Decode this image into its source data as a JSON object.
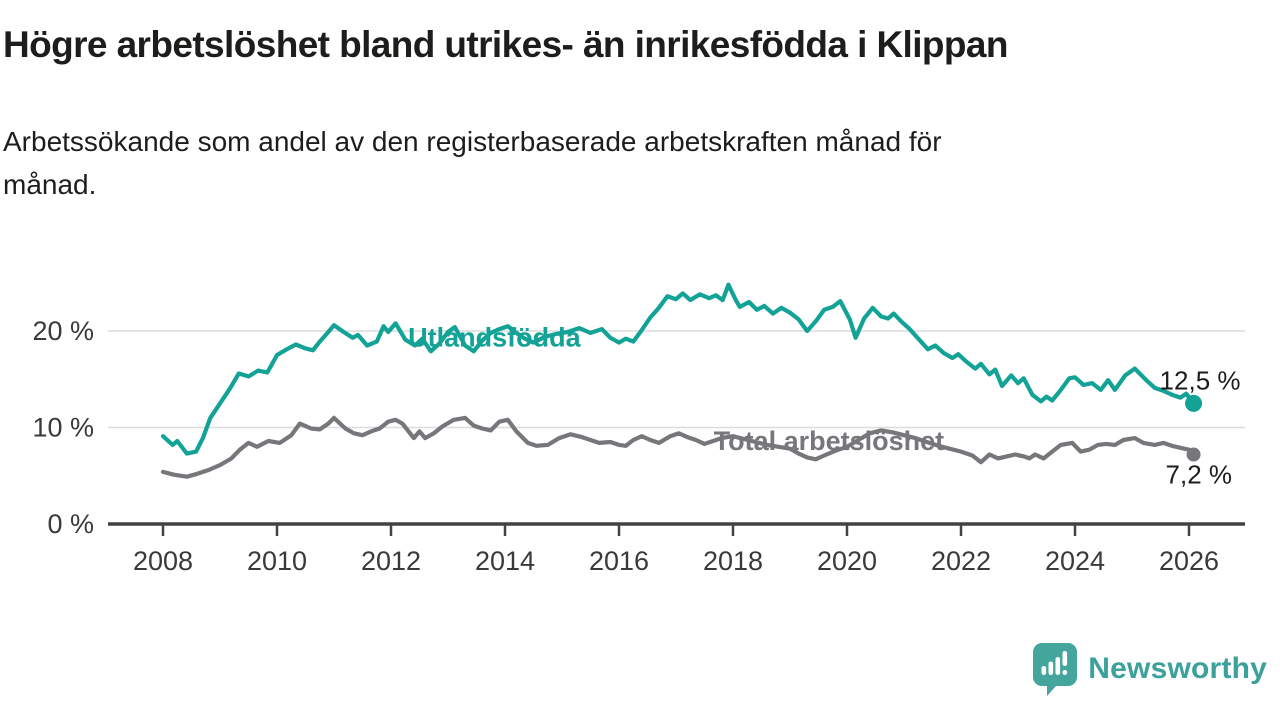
{
  "header": {
    "title": "Högre arbetslöshet bland utrikes- än inrikesfödda i Klippan",
    "subtitle_line1": "Arbetssökande som andel av den registerbaserade arbetskraften månad för",
    "subtitle_line2": "månad."
  },
  "colors": {
    "line_teal": "#13a296",
    "line_gray": "#77777b",
    "brand_teal": "#44a59d",
    "brand_text_teal": "#3ba19a",
    "axis": "#424242",
    "tick_text": "#3a3a3a",
    "grid": "#dcdcdc",
    "text_dark": "#1d1d1b"
  },
  "chart_data": {
    "type": "line",
    "x_unit": "decimal_year",
    "xlim": [
      2007.0,
      2027.0
    ],
    "ylim": [
      0,
      27
    ],
    "grid": "horizontal",
    "x_ticks": [
      {
        "v": 2008,
        "label": "2008"
      },
      {
        "v": 2010,
        "label": "2010"
      },
      {
        "v": 2012,
        "label": "2012"
      },
      {
        "v": 2014,
        "label": "2014"
      },
      {
        "v": 2016,
        "label": "2016"
      },
      {
        "v": 2018,
        "label": "2018"
      },
      {
        "v": 2020,
        "label": "2020"
      },
      {
        "v": 2022,
        "label": "2022"
      },
      {
        "v": 2024,
        "label": "2024"
      },
      {
        "v": 2026,
        "label": "2026"
      }
    ],
    "y_ticks": [
      {
        "v": 0,
        "label": "0 %"
      },
      {
        "v": 10,
        "label": "10 %"
      },
      {
        "v": 20,
        "label": "20 %"
      }
    ],
    "series": [
      {
        "name": "Utlandsfödda",
        "color": "#13a296",
        "line_width": 4.2,
        "end_dot_radius": 8.5,
        "end_label": "12,5 %",
        "end_value": 12.5,
        "label_pos": {
          "x": 2012.3,
          "y": 18.4
        },
        "points": [
          [
            2008.0,
            9.1
          ],
          [
            2008.17,
            8.2
          ],
          [
            2008.25,
            8.6
          ],
          [
            2008.42,
            7.3
          ],
          [
            2008.58,
            7.5
          ],
          [
            2008.7,
            8.9
          ],
          [
            2008.83,
            11.0
          ],
          [
            2009.0,
            12.5
          ],
          [
            2009.17,
            14.0
          ],
          [
            2009.33,
            15.6
          ],
          [
            2009.5,
            15.3
          ],
          [
            2009.67,
            15.9
          ],
          [
            2009.83,
            15.7
          ],
          [
            2010.0,
            17.5
          ],
          [
            2010.17,
            18.1
          ],
          [
            2010.33,
            18.6
          ],
          [
            2010.5,
            18.2
          ],
          [
            2010.63,
            18.0
          ],
          [
            2010.75,
            18.9
          ],
          [
            2010.9,
            19.9
          ],
          [
            2011.0,
            20.6
          ],
          [
            2011.17,
            19.9
          ],
          [
            2011.33,
            19.3
          ],
          [
            2011.42,
            19.6
          ],
          [
            2011.58,
            18.5
          ],
          [
            2011.75,
            18.9
          ],
          [
            2011.87,
            20.5
          ],
          [
            2011.95,
            19.9
          ],
          [
            2012.08,
            20.8
          ],
          [
            2012.25,
            19.1
          ],
          [
            2012.42,
            18.5
          ],
          [
            2012.55,
            19.2
          ],
          [
            2012.7,
            17.9
          ],
          [
            2012.85,
            18.7
          ],
          [
            2013.0,
            19.9
          ],
          [
            2013.12,
            20.4
          ],
          [
            2013.3,
            18.5
          ],
          [
            2013.45,
            17.9
          ],
          [
            2013.6,
            19.0
          ],
          [
            2013.75,
            19.8
          ],
          [
            2013.9,
            20.2
          ],
          [
            2014.05,
            20.5
          ],
          [
            2014.2,
            19.8
          ],
          [
            2014.35,
            19.2
          ],
          [
            2014.5,
            18.8
          ],
          [
            2014.7,
            19.4
          ],
          [
            2014.9,
            19.7
          ],
          [
            2015.1,
            19.9
          ],
          [
            2015.3,
            20.3
          ],
          [
            2015.5,
            19.8
          ],
          [
            2015.7,
            20.2
          ],
          [
            2015.85,
            19.3
          ],
          [
            2016.0,
            18.8
          ],
          [
            2016.12,
            19.2
          ],
          [
            2016.25,
            18.9
          ],
          [
            2016.4,
            20.1
          ],
          [
            2016.55,
            21.4
          ],
          [
            2016.7,
            22.4
          ],
          [
            2016.85,
            23.6
          ],
          [
            2017.0,
            23.3
          ],
          [
            2017.12,
            23.9
          ],
          [
            2017.25,
            23.2
          ],
          [
            2017.42,
            23.8
          ],
          [
            2017.58,
            23.4
          ],
          [
            2017.7,
            23.7
          ],
          [
            2017.82,
            23.2
          ],
          [
            2017.92,
            24.8
          ],
          [
            2018.05,
            23.2
          ],
          [
            2018.12,
            22.5
          ],
          [
            2018.28,
            23.0
          ],
          [
            2018.42,
            22.2
          ],
          [
            2018.55,
            22.6
          ],
          [
            2018.7,
            21.8
          ],
          [
            2018.85,
            22.4
          ],
          [
            2019.0,
            21.9
          ],
          [
            2019.15,
            21.2
          ],
          [
            2019.3,
            20.0
          ],
          [
            2019.45,
            21.0
          ],
          [
            2019.6,
            22.2
          ],
          [
            2019.75,
            22.5
          ],
          [
            2019.88,
            23.1
          ],
          [
            2020.05,
            21.2
          ],
          [
            2020.15,
            19.3
          ],
          [
            2020.3,
            21.3
          ],
          [
            2020.45,
            22.4
          ],
          [
            2020.6,
            21.5
          ],
          [
            2020.72,
            21.3
          ],
          [
            2020.82,
            21.8
          ],
          [
            2020.95,
            21.0
          ],
          [
            2021.1,
            20.2
          ],
          [
            2021.25,
            19.2
          ],
          [
            2021.42,
            18.1
          ],
          [
            2021.55,
            18.5
          ],
          [
            2021.7,
            17.7
          ],
          [
            2021.85,
            17.2
          ],
          [
            2021.95,
            17.6
          ],
          [
            2022.1,
            16.8
          ],
          [
            2022.25,
            16.1
          ],
          [
            2022.35,
            16.6
          ],
          [
            2022.5,
            15.5
          ],
          [
            2022.6,
            16.0
          ],
          [
            2022.72,
            14.3
          ],
          [
            2022.88,
            15.4
          ],
          [
            2023.0,
            14.6
          ],
          [
            2023.1,
            15.1
          ],
          [
            2023.25,
            13.4
          ],
          [
            2023.4,
            12.7
          ],
          [
            2023.5,
            13.2
          ],
          [
            2023.6,
            12.8
          ],
          [
            2023.75,
            13.9
          ],
          [
            2023.9,
            15.1
          ],
          [
            2024.0,
            15.2
          ],
          [
            2024.15,
            14.4
          ],
          [
            2024.3,
            14.6
          ],
          [
            2024.45,
            13.9
          ],
          [
            2024.58,
            14.9
          ],
          [
            2024.7,
            13.9
          ],
          [
            2024.88,
            15.4
          ],
          [
            2025.05,
            16.1
          ],
          [
            2025.25,
            14.9
          ],
          [
            2025.4,
            14.1
          ],
          [
            2025.55,
            13.8
          ],
          [
            2025.7,
            13.4
          ],
          [
            2025.85,
            13.1
          ],
          [
            2025.95,
            13.5
          ],
          [
            2026.08,
            12.5
          ]
        ]
      },
      {
        "name": "Total arbetslöshet",
        "color": "#77777b",
        "line_width": 4.2,
        "end_dot_radius": 7,
        "end_label": "7,2 %",
        "end_value": 7.2,
        "label_pos": {
          "x": 2017.66,
          "y": 7.67
        },
        "points": [
          [
            2008.0,
            5.4
          ],
          [
            2008.2,
            5.1
          ],
          [
            2008.42,
            4.9
          ],
          [
            2008.6,
            5.2
          ],
          [
            2008.8,
            5.6
          ],
          [
            2009.0,
            6.1
          ],
          [
            2009.2,
            6.8
          ],
          [
            2009.35,
            7.7
          ],
          [
            2009.5,
            8.4
          ],
          [
            2009.65,
            8.0
          ],
          [
            2009.85,
            8.6
          ],
          [
            2010.05,
            8.4
          ],
          [
            2010.25,
            9.2
          ],
          [
            2010.4,
            10.4
          ],
          [
            2010.6,
            9.9
          ],
          [
            2010.75,
            9.8
          ],
          [
            2010.9,
            10.4
          ],
          [
            2011.0,
            11.0
          ],
          [
            2011.2,
            9.9
          ],
          [
            2011.35,
            9.4
          ],
          [
            2011.5,
            9.2
          ],
          [
            2011.65,
            9.6
          ],
          [
            2011.8,
            9.9
          ],
          [
            2011.95,
            10.6
          ],
          [
            2012.08,
            10.8
          ],
          [
            2012.2,
            10.4
          ],
          [
            2012.4,
            8.9
          ],
          [
            2012.5,
            9.6
          ],
          [
            2012.6,
            8.9
          ],
          [
            2012.75,
            9.4
          ],
          [
            2012.9,
            10.1
          ],
          [
            2013.1,
            10.8
          ],
          [
            2013.3,
            11.0
          ],
          [
            2013.45,
            10.2
          ],
          [
            2013.6,
            9.9
          ],
          [
            2013.75,
            9.7
          ],
          [
            2013.9,
            10.6
          ],
          [
            2014.05,
            10.8
          ],
          [
            2014.2,
            9.6
          ],
          [
            2014.4,
            8.4
          ],
          [
            2014.55,
            8.1
          ],
          [
            2014.75,
            8.2
          ],
          [
            2014.95,
            8.9
          ],
          [
            2015.15,
            9.3
          ],
          [
            2015.35,
            9.0
          ],
          [
            2015.5,
            8.7
          ],
          [
            2015.65,
            8.4
          ],
          [
            2015.85,
            8.5
          ],
          [
            2016.0,
            8.2
          ],
          [
            2016.12,
            8.1
          ],
          [
            2016.25,
            8.7
          ],
          [
            2016.4,
            9.1
          ],
          [
            2016.55,
            8.7
          ],
          [
            2016.7,
            8.4
          ],
          [
            2016.9,
            9.1
          ],
          [
            2017.05,
            9.4
          ],
          [
            2017.2,
            9.0
          ],
          [
            2017.35,
            8.7
          ],
          [
            2017.5,
            8.3
          ],
          [
            2017.65,
            8.6
          ],
          [
            2017.8,
            8.9
          ],
          [
            2018.0,
            9.1
          ],
          [
            2018.2,
            8.8
          ],
          [
            2018.4,
            8.5
          ],
          [
            2018.6,
            8.2
          ],
          [
            2018.8,
            8.0
          ],
          [
            2019.0,
            7.8
          ],
          [
            2019.15,
            7.3
          ],
          [
            2019.3,
            6.9
          ],
          [
            2019.45,
            6.7
          ],
          [
            2019.6,
            7.1
          ],
          [
            2019.8,
            7.6
          ],
          [
            2020.0,
            8.0
          ],
          [
            2020.2,
            8.7
          ],
          [
            2020.4,
            9.4
          ],
          [
            2020.6,
            9.7
          ],
          [
            2020.8,
            9.5
          ],
          [
            2021.0,
            9.2
          ],
          [
            2021.2,
            8.9
          ],
          [
            2021.4,
            8.5
          ],
          [
            2021.6,
            8.1
          ],
          [
            2021.8,
            7.8
          ],
          [
            2022.0,
            7.5
          ],
          [
            2022.2,
            7.1
          ],
          [
            2022.35,
            6.4
          ],
          [
            2022.5,
            7.2
          ],
          [
            2022.65,
            6.8
          ],
          [
            2022.8,
            7.0
          ],
          [
            2022.95,
            7.2
          ],
          [
            2023.1,
            7.0
          ],
          [
            2023.2,
            6.8
          ],
          [
            2023.3,
            7.2
          ],
          [
            2023.45,
            6.8
          ],
          [
            2023.6,
            7.5
          ],
          [
            2023.75,
            8.2
          ],
          [
            2023.95,
            8.4
          ],
          [
            2024.1,
            7.5
          ],
          [
            2024.25,
            7.7
          ],
          [
            2024.4,
            8.2
          ],
          [
            2024.55,
            8.3
          ],
          [
            2024.7,
            8.2
          ],
          [
            2024.85,
            8.7
          ],
          [
            2025.05,
            8.9
          ],
          [
            2025.2,
            8.4
          ],
          [
            2025.4,
            8.2
          ],
          [
            2025.55,
            8.4
          ],
          [
            2025.7,
            8.1
          ],
          [
            2025.85,
            7.9
          ],
          [
            2026.0,
            7.7
          ],
          [
            2026.08,
            7.2
          ]
        ]
      }
    ]
  },
  "footer": {
    "brand": "Newsworthy",
    "logo_icon": "bar-chart-speech-bubble-icon"
  }
}
